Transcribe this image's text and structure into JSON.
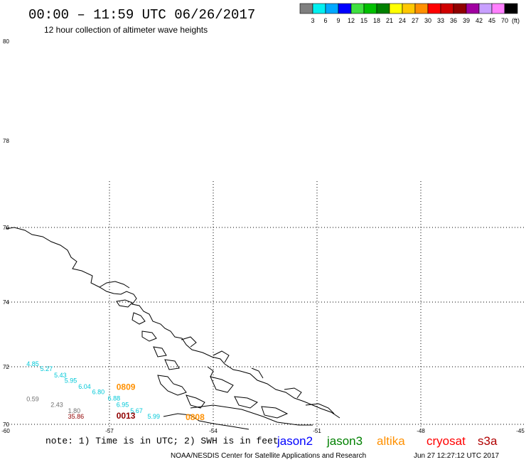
{
  "header": {
    "title": "00:00 – 11:59 UTC 06/26/2017",
    "subtitle": "12 hour collection of altimeter wave heights"
  },
  "legend": {
    "unit": "(ft)",
    "colors": [
      "#7f7f7f",
      "#00f0f0",
      "#00a8ff",
      "#0000ff",
      "#40e040",
      "#00c000",
      "#008000",
      "#ffff00",
      "#ffc800",
      "#ff9000",
      "#ff0000",
      "#d00000",
      "#900000",
      "#a000a0",
      "#c8a0ff",
      "#ff80ff",
      "#000000"
    ],
    "labels": [
      "3",
      "6",
      "9",
      "12",
      "15",
      "18",
      "21",
      "24",
      "27",
      "30",
      "33",
      "36",
      "39",
      "42",
      "45",
      "70"
    ]
  },
  "map": {
    "lat_labels": [
      "80",
      "78",
      "76",
      "74",
      "72",
      "70"
    ],
    "lon_labels": [
      "-60",
      "-57",
      "-54",
      "-51",
      "-48",
      "-45"
    ],
    "observations": [
      {
        "text": "4.85",
        "color": "#00c8d8",
        "lon": -59.4,
        "lat": 72.02
      },
      {
        "text": "5.27",
        "color": "#00c8d8",
        "lon": -59.0,
        "lat": 71.85
      },
      {
        "text": "5.43",
        "color": "#00c8d8",
        "lon": -58.6,
        "lat": 71.63
      },
      {
        "text": "5.95",
        "color": "#00c8d8",
        "lon": -58.3,
        "lat": 71.45
      },
      {
        "text": "6.04",
        "color": "#00c8d8",
        "lon": -57.9,
        "lat": 71.23
      },
      {
        "text": "6.80",
        "color": "#00c8d8",
        "lon": -57.5,
        "lat": 71.05
      },
      {
        "text": "6.88",
        "color": "#00c8d8",
        "lon": -57.05,
        "lat": 70.83
      },
      {
        "text": "6.95",
        "color": "#00c8d8",
        "lon": -56.8,
        "lat": 70.6
      },
      {
        "text": "5.67",
        "color": "#00c8d8",
        "lon": -56.4,
        "lat": 70.4
      },
      {
        "text": "5.99",
        "color": "#00c8d8",
        "lon": -55.9,
        "lat": 70.2
      },
      {
        "text": "0.59",
        "color": "#707070",
        "lon": -59.4,
        "lat": 70.8
      },
      {
        "text": "2.43",
        "color": "#707070",
        "lon": -58.7,
        "lat": 70.6
      },
      {
        "text": "1.80",
        "color": "#707070",
        "lon": -58.2,
        "lat": 70.4
      },
      {
        "text": "35.86",
        "color": "#900000",
        "lon": -58.2,
        "lat": 70.2
      },
      {
        "text": "0809",
        "color": "#ff9000",
        "lon": -56.8,
        "lat": 71.2,
        "large": true
      },
      {
        "text": "0013",
        "color": "#900000",
        "lon": -56.8,
        "lat": 70.2,
        "large": true
      },
      {
        "text": "0808",
        "color": "#ff9000",
        "lon": -54.8,
        "lat": 70.15,
        "large": true
      }
    ]
  },
  "footer": {
    "note": "note: 1) Time is in UTC; 2) SWH is in feet",
    "satellites": [
      {
        "name": "jason2",
        "color": "#0000ff"
      },
      {
        "name": "jason3",
        "color": "#008000"
      },
      {
        "name": "altika",
        "color": "#ff9000"
      },
      {
        "name": "cryosat",
        "color": "#ff0000"
      },
      {
        "name": "s3a",
        "color": "#b00000"
      }
    ],
    "credit": "NOAA/NESDIS Center for Satellite Applications and Research",
    "timestamp": "Jun 27 12:27:12 UTC 2017"
  }
}
